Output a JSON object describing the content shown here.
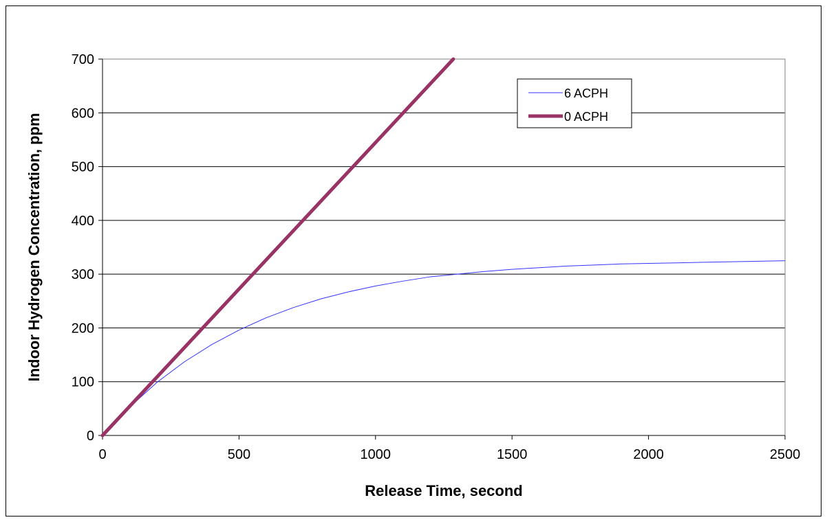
{
  "chart_data": {
    "type": "line",
    "title": "",
    "xlabel": "Release Time, second",
    "ylabel": "Indoor Hydrogen Concentration, ppm",
    "xlim": [
      0,
      2500
    ],
    "ylim": [
      0,
      700
    ],
    "xticks": [
      0,
      500,
      1000,
      1500,
      2000,
      2500
    ],
    "yticks": [
      0,
      100,
      200,
      300,
      400,
      500,
      600,
      700
    ],
    "grid": "horizontal",
    "legend_position": "top-right",
    "series": [
      {
        "name": "6 ACPH",
        "color": "#3333ff",
        "line_width": "thin",
        "x": [
          0,
          100,
          200,
          300,
          400,
          500,
          600,
          700,
          800,
          900,
          1000,
          1100,
          1200,
          1300,
          1400,
          1500,
          1600,
          1700,
          1800,
          1900,
          2000,
          2100,
          2200,
          2300,
          2400,
          2500
        ],
        "y": [
          0,
          53,
          99,
          137,
          169,
          196,
          219,
          238,
          254,
          267,
          278,
          287,
          295,
          300,
          305,
          309,
          312,
          315,
          317,
          319,
          320,
          321,
          322,
          323,
          324,
          325
        ]
      },
      {
        "name": "0 ACPH",
        "color": "#993366",
        "line_width": "thick",
        "x": [
          0,
          1285
        ],
        "y": [
          0,
          700
        ]
      }
    ]
  }
}
